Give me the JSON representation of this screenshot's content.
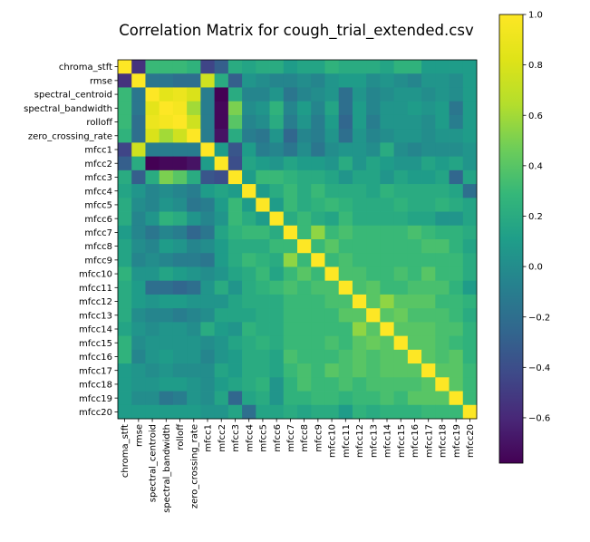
{
  "chart_data": {
    "type": "heatmap",
    "title": "Correlation Matrix for cough_trial_extended.csv",
    "colormap": "viridis",
    "vmin": -0.78,
    "vmax": 1.0,
    "labels": [
      "chroma_stft",
      "rmse",
      "spectral_centroid",
      "spectral_bandwidth",
      "rolloff",
      "zero_crossing_rate",
      "mfcc1",
      "mfcc2",
      "mfcc3",
      "mfcc4",
      "mfcc5",
      "mfcc6",
      "mfcc7",
      "mfcc8",
      "mfcc9",
      "mfcc10",
      "mfcc11",
      "mfcc12",
      "mfcc13",
      "mfcc14",
      "mfcc15",
      "mfcc16",
      "mfcc17",
      "mfcc18",
      "mfcc19",
      "mfcc20"
    ],
    "colorbar_ticks": [
      1.0,
      0.8,
      0.6,
      0.4,
      0.2,
      0.0,
      -0.2,
      -0.4,
      -0.6
    ],
    "colorbar_tick_labels": [
      "1.0",
      "0.8",
      "0.6",
      "0.4",
      "0.2",
      "0.0",
      "−0.2",
      "−0.4",
      "−0.6"
    ],
    "matrix": [
      [
        1.0,
        -0.55,
        0.3,
        0.3,
        0.3,
        0.25,
        -0.45,
        -0.3,
        0.2,
        0.15,
        0.2,
        0.2,
        0.1,
        0.15,
        0.15,
        0.25,
        0.2,
        0.2,
        0.2,
        0.15,
        0.25,
        0.25,
        0.1,
        0.1,
        0.1,
        0.1
      ],
      [
        -0.55,
        1.0,
        -0.15,
        -0.15,
        -0.2,
        -0.2,
        0.75,
        0.2,
        -0.3,
        0.05,
        0.0,
        -0.05,
        -0.05,
        0.0,
        -0.05,
        0.05,
        0.1,
        0.1,
        0.0,
        0.05,
        0.0,
        -0.05,
        0.05,
        0.05,
        0.0,
        0.1
      ],
      [
        0.3,
        -0.15,
        1.0,
        0.85,
        0.9,
        0.8,
        -0.1,
        -0.78,
        0.2,
        -0.05,
        -0.05,
        0.05,
        -0.15,
        -0.05,
        0.0,
        0.05,
        -0.2,
        0.05,
        -0.05,
        0.0,
        0.05,
        0.05,
        0.0,
        0.05,
        0.0,
        0.1
      ],
      [
        0.3,
        -0.15,
        0.85,
        1.0,
        0.95,
        0.6,
        -0.1,
        -0.75,
        0.5,
        0.0,
        0.05,
        0.25,
        -0.05,
        0.1,
        -0.05,
        0.15,
        -0.2,
        0.1,
        -0.05,
        0.05,
        0.05,
        0.1,
        0.05,
        0.1,
        -0.15,
        0.1
      ],
      [
        0.3,
        -0.2,
        0.9,
        0.95,
        1.0,
        0.75,
        -0.1,
        -0.75,
        0.4,
        -0.05,
        0.0,
        0.2,
        -0.1,
        0.05,
        -0.1,
        0.1,
        -0.25,
        0.1,
        -0.1,
        0.05,
        0.05,
        0.05,
        0.0,
        0.1,
        -0.1,
        0.1
      ],
      [
        0.25,
        -0.2,
        0.8,
        0.6,
        0.75,
        1.0,
        -0.1,
        -0.7,
        0.2,
        -0.1,
        -0.15,
        0.05,
        -0.25,
        -0.05,
        -0.1,
        0.05,
        -0.2,
        0.05,
        -0.05,
        0.0,
        0.05,
        0.05,
        0.0,
        0.05,
        0.05,
        0.1
      ],
      [
        -0.45,
        0.75,
        -0.1,
        -0.1,
        -0.1,
        -0.1,
        1.0,
        0.1,
        -0.35,
        0.1,
        -0.1,
        -0.05,
        -0.15,
        0.0,
        -0.15,
        0.0,
        0.05,
        0.05,
        0.0,
        0.2,
        0.0,
        -0.05,
        0.0,
        0.0,
        0.0,
        0.05
      ],
      [
        -0.3,
        0.2,
        -0.78,
        -0.75,
        -0.75,
        -0.7,
        0.1,
        1.0,
        -0.4,
        0.15,
        0.1,
        0.05,
        0.15,
        0.1,
        0.1,
        0.05,
        0.2,
        0.05,
        0.15,
        0.1,
        0.05,
        0.05,
        0.15,
        0.1,
        0.15,
        0.05
      ],
      [
        0.2,
        -0.3,
        0.2,
        0.5,
        0.4,
        0.2,
        -0.35,
        -0.4,
        1.0,
        0.1,
        0.3,
        0.3,
        0.25,
        0.2,
        0.2,
        0.15,
        0.05,
        0.15,
        0.15,
        0.05,
        0.15,
        0.1,
        0.1,
        0.15,
        -0.25,
        0.15
      ],
      [
        0.15,
        0.05,
        -0.05,
        0.0,
        -0.05,
        -0.1,
        0.1,
        0.15,
        0.1,
        1.0,
        0.1,
        0.2,
        0.3,
        0.2,
        0.3,
        0.2,
        0.2,
        0.2,
        0.15,
        0.25,
        0.2,
        0.2,
        0.2,
        0.2,
        0.15,
        -0.2
      ],
      [
        0.2,
        0.0,
        -0.05,
        0.05,
        0.0,
        -0.15,
        -0.1,
        0.1,
        0.3,
        0.1,
        1.0,
        0.1,
        0.3,
        0.2,
        0.25,
        0.3,
        0.25,
        0.2,
        0.2,
        0.2,
        0.25,
        0.2,
        0.2,
        0.25,
        0.2,
        0.15
      ],
      [
        0.2,
        -0.05,
        0.05,
        0.25,
        0.2,
        0.05,
        -0.05,
        0.05,
        0.3,
        0.2,
        0.1,
        1.0,
        0.2,
        0.3,
        0.2,
        0.15,
        0.3,
        0.2,
        0.2,
        0.2,
        0.2,
        0.15,
        0.15,
        0.05,
        0.05,
        0.15
      ],
      [
        0.1,
        -0.05,
        -0.15,
        -0.05,
        -0.1,
        -0.25,
        -0.15,
        0.15,
        0.25,
        0.3,
        0.3,
        0.2,
        1.0,
        0.3,
        0.55,
        0.3,
        0.35,
        0.3,
        0.3,
        0.3,
        0.3,
        0.35,
        0.3,
        0.25,
        0.25,
        0.2
      ],
      [
        0.15,
        0.0,
        -0.05,
        0.1,
        0.05,
        -0.05,
        0.0,
        0.1,
        0.2,
        0.2,
        0.2,
        0.3,
        0.3,
        1.0,
        0.3,
        0.4,
        0.3,
        0.3,
        0.3,
        0.3,
        0.3,
        0.3,
        0.35,
        0.35,
        0.25,
        0.15
      ],
      [
        0.15,
        -0.05,
        0.0,
        -0.05,
        -0.1,
        -0.1,
        -0.15,
        0.1,
        0.2,
        0.3,
        0.25,
        0.2,
        0.55,
        0.3,
        1.0,
        0.3,
        0.35,
        0.3,
        0.3,
        0.3,
        0.3,
        0.3,
        0.3,
        0.3,
        0.3,
        0.2
      ],
      [
        0.25,
        0.05,
        0.05,
        0.15,
        0.1,
        0.05,
        0.0,
        0.05,
        0.15,
        0.2,
        0.3,
        0.15,
        0.3,
        0.4,
        0.3,
        1.0,
        0.35,
        0.35,
        0.3,
        0.3,
        0.35,
        0.3,
        0.4,
        0.3,
        0.3,
        0.2
      ],
      [
        0.2,
        0.1,
        -0.2,
        -0.2,
        -0.25,
        -0.2,
        0.05,
        0.2,
        0.05,
        0.2,
        0.25,
        0.3,
        0.35,
        0.3,
        0.35,
        0.35,
        1.0,
        0.35,
        0.4,
        0.3,
        0.3,
        0.35,
        0.35,
        0.35,
        0.25,
        0.1
      ],
      [
        0.2,
        0.1,
        0.05,
        0.1,
        0.1,
        0.05,
        0.05,
        0.05,
        0.15,
        0.2,
        0.2,
        0.2,
        0.3,
        0.3,
        0.3,
        0.35,
        0.35,
        1.0,
        0.4,
        0.55,
        0.4,
        0.4,
        0.4,
        0.3,
        0.3,
        0.25
      ],
      [
        0.2,
        0.0,
        -0.05,
        -0.05,
        -0.1,
        -0.05,
        0.0,
        0.15,
        0.15,
        0.15,
        0.2,
        0.2,
        0.3,
        0.3,
        0.3,
        0.3,
        0.4,
        0.4,
        1.0,
        0.4,
        0.45,
        0.35,
        0.35,
        0.35,
        0.3,
        0.2
      ],
      [
        0.15,
        0.05,
        0.0,
        0.05,
        0.05,
        0.0,
        0.2,
        0.1,
        0.05,
        0.25,
        0.2,
        0.2,
        0.3,
        0.3,
        0.3,
        0.3,
        0.3,
        0.55,
        0.4,
        1.0,
        0.4,
        0.4,
        0.4,
        0.35,
        0.35,
        0.25
      ],
      [
        0.25,
        0.0,
        0.05,
        0.05,
        0.05,
        0.05,
        0.0,
        0.05,
        0.15,
        0.2,
        0.25,
        0.2,
        0.3,
        0.3,
        0.3,
        0.35,
        0.3,
        0.4,
        0.45,
        0.4,
        1.0,
        0.4,
        0.4,
        0.35,
        0.3,
        0.25
      ],
      [
        0.25,
        -0.05,
        0.05,
        0.1,
        0.05,
        0.05,
        -0.05,
        0.05,
        0.1,
        0.2,
        0.2,
        0.15,
        0.35,
        0.3,
        0.3,
        0.3,
        0.35,
        0.4,
        0.35,
        0.4,
        0.4,
        1.0,
        0.4,
        0.35,
        0.4,
        0.25
      ],
      [
        0.1,
        0.05,
        0.0,
        0.05,
        0.0,
        0.0,
        0.0,
        0.15,
        0.1,
        0.2,
        0.2,
        0.15,
        0.3,
        0.35,
        0.3,
        0.4,
        0.35,
        0.4,
        0.35,
        0.4,
        0.4,
        0.4,
        1.0,
        0.4,
        0.4,
        0.3
      ],
      [
        0.1,
        0.05,
        0.05,
        0.1,
        0.1,
        0.05,
        0.0,
        0.1,
        0.15,
        0.2,
        0.25,
        0.05,
        0.25,
        0.35,
        0.3,
        0.3,
        0.35,
        0.3,
        0.35,
        0.35,
        0.35,
        0.35,
        0.4,
        1.0,
        0.4,
        0.3
      ],
      [
        0.1,
        0.0,
        0.0,
        -0.15,
        -0.1,
        0.05,
        0.0,
        0.15,
        -0.25,
        0.15,
        0.2,
        0.05,
        0.25,
        0.25,
        0.3,
        0.3,
        0.25,
        0.3,
        0.3,
        0.35,
        0.3,
        0.4,
        0.4,
        0.4,
        1.0,
        0.3
      ],
      [
        0.1,
        0.1,
        0.1,
        0.1,
        0.1,
        0.1,
        0.05,
        0.05,
        0.15,
        -0.2,
        0.15,
        0.15,
        0.2,
        0.15,
        0.2,
        0.2,
        0.1,
        0.25,
        0.2,
        0.25,
        0.25,
        0.25,
        0.3,
        0.3,
        0.3,
        1.0
      ]
    ]
  }
}
